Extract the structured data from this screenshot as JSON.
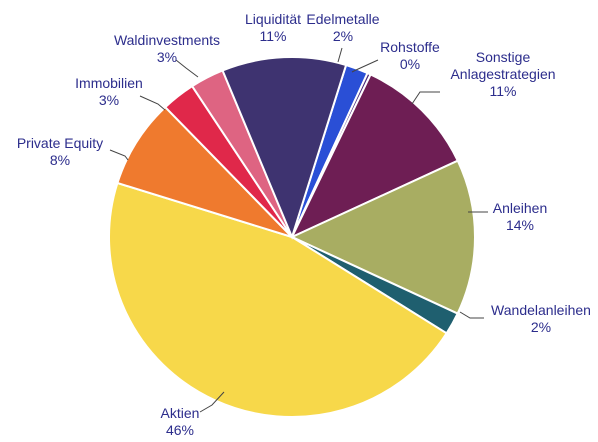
{
  "chart_data": {
    "type": "pie",
    "title": "",
    "start_angle_deg": 0,
    "direction": "clockwise",
    "slices": [
      {
        "name": "Edelmetalle",
        "label": "Edelmetalle",
        "pct_label": "2%",
        "value": 2,
        "color": "#2a4fd6"
      },
      {
        "name": "Rohstoffe",
        "label": "Rohstoffe",
        "pct_label": "0%",
        "value": 0.3,
        "color": "#4a2a7a"
      },
      {
        "name": "Sonstige Anlagestrategien",
        "label": "Sonstige\nAnlagestrategien",
        "pct_label": "11%",
        "value": 11,
        "color": "#6e1e54"
      },
      {
        "name": "Anleihen",
        "label": "Anleihen",
        "pct_label": "14%",
        "value": 14,
        "color": "#a8ad62"
      },
      {
        "name": "Wandelanleihen",
        "label": "Wandelanleihen",
        "pct_label": "2%",
        "value": 2,
        "color": "#1f5f6f"
      },
      {
        "name": "Aktien",
        "label": "Aktien",
        "pct_label": "46%",
        "value": 46,
        "color": "#f7d84a"
      },
      {
        "name": "Private Equity",
        "label": "Private Equity",
        "pct_label": "8%",
        "value": 8,
        "color": "#ef7a2e"
      },
      {
        "name": "Immobilien",
        "label": "Immobilien",
        "pct_label": "3%",
        "value": 3,
        "color": "#e0284a"
      },
      {
        "name": "Waldinvestments",
        "label": "Waldinvestments",
        "pct_label": "3%",
        "value": 3,
        "color": "#de6482"
      },
      {
        "name": "Liquidität",
        "label": "Liquidität",
        "pct_label": "11%",
        "value": 11,
        "color": "#3e3370"
      }
    ]
  }
}
